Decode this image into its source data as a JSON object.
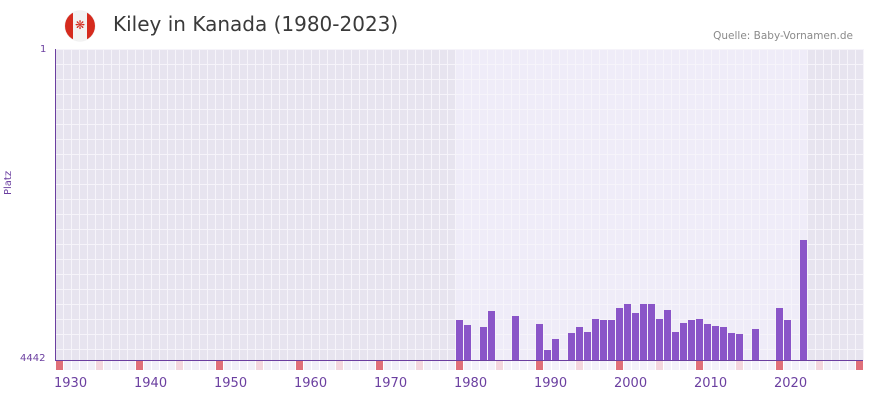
{
  "header": {
    "flag_icon": "canada-flag-icon",
    "title": "Kiley in Kanada (1980-2023)",
    "source": "Quelle: Baby-Vornamen.de"
  },
  "colors": {
    "bar": "#8a55c8",
    "axis": "#6b3fa0",
    "decade_marker": "#e0707a",
    "half_decade_marker": "#f3d6de",
    "plot_bg_outside": "#e4e0ec",
    "plot_bg_inside": "#efecf8"
  },
  "chart_data": {
    "type": "bar",
    "title": "Kiley in Kanada (1980-2023)",
    "xlabel": "",
    "ylabel": "Platz",
    "y_inverted": true,
    "ylim": [
      1,
      4442
    ],
    "y_ticks": [
      "1",
      "4442"
    ],
    "xlim": [
      1930,
      2030
    ],
    "x_ticks": [
      "1930",
      "1940",
      "1950",
      "1960",
      "1970",
      "1980",
      "1990",
      "2000",
      "2010",
      "2020"
    ],
    "highlight_range": [
      1980,
      2023
    ],
    "grid": true,
    "legend": null,
    "source": "Quelle: Baby-Vornamen.de",
    "categories": [
      1980,
      1981,
      1983,
      1984,
      1987,
      1990,
      1991,
      1992,
      1994,
      1995,
      1996,
      1997,
      1998,
      1999,
      2000,
      2001,
      2002,
      2003,
      2004,
      2005,
      2006,
      2007,
      2008,
      2009,
      2010,
      2011,
      2012,
      2013,
      2014,
      2015,
      2017,
      2020,
      2021,
      2023
    ],
    "values": [
      3871,
      3943,
      3971,
      3743,
      3814,
      3928,
      4300,
      4142,
      4057,
      3971,
      4042,
      3857,
      3871,
      3871,
      3700,
      3642,
      3771,
      3642,
      3642,
      3857,
      3728,
      4042,
      3914,
      3871,
      3857,
      3928,
      3957,
      3971,
      4057,
      4071,
      4000,
      3700,
      3871,
      2729
    ]
  }
}
